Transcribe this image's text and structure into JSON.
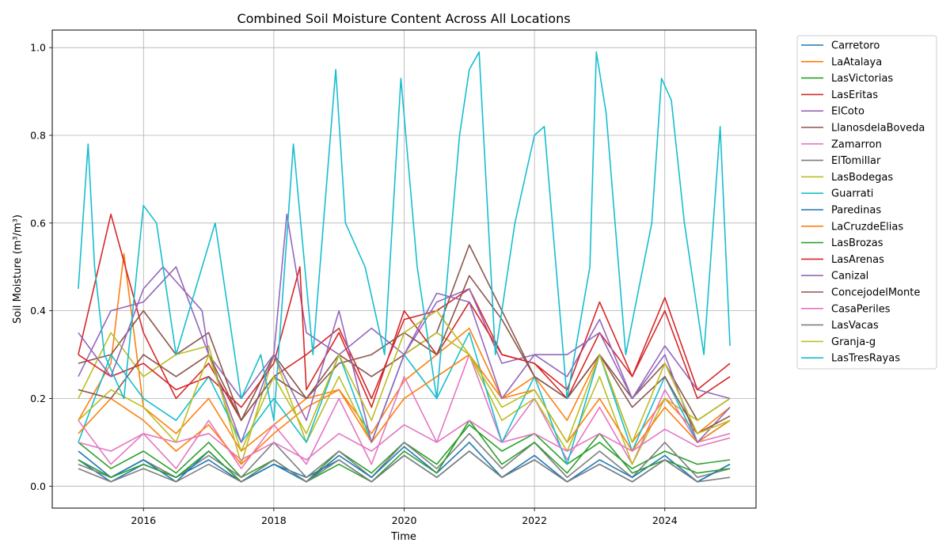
{
  "chart_data": {
    "type": "line",
    "title": "Combined Soil Moisture Content Across All Locations",
    "xlabel": "Time",
    "ylabel": "Soil Moisture (m³/m³)",
    "xlim": [
      2014.6,
      2025.4
    ],
    "ylim": [
      -0.05,
      1.04
    ],
    "x_ticks": [
      {
        "value": 2016,
        "label": "2016"
      },
      {
        "value": 2018,
        "label": "2018"
      },
      {
        "value": 2020,
        "label": "2020"
      },
      {
        "value": 2022,
        "label": "2022"
      },
      {
        "value": 2024,
        "label": "2024"
      }
    ],
    "y_ticks": [
      {
        "value": 0.0,
        "label": "0.0"
      },
      {
        "value": 0.2,
        "label": "0.2"
      },
      {
        "value": 0.4,
        "label": "0.4"
      },
      {
        "value": 0.6,
        "label": "0.6"
      },
      {
        "value": 0.8,
        "label": "0.8"
      },
      {
        "value": 1.0,
        "label": "1.0"
      }
    ],
    "grid": true,
    "legend_position": "outside-top-right",
    "series": [
      {
        "name": "Carretoro",
        "color": "#1f77b4",
        "x": [
          2015.0,
          2015.5,
          2016.0,
          2016.5,
          2017.0,
          2017.5,
          2018.0,
          2018.5,
          2019.0,
          2019.5,
          2020.0,
          2020.5,
          2021.0,
          2021.5,
          2022.0,
          2022.5,
          2023.0,
          2023.5,
          2024.0,
          2024.5,
          2025.0
        ],
        "values": [
          0.06,
          0.01,
          0.05,
          0.02,
          0.06,
          0.01,
          0.05,
          0.02,
          0.06,
          0.01,
          0.07,
          0.02,
          0.08,
          0.02,
          0.06,
          0.01,
          0.05,
          0.01,
          0.06,
          0.01,
          0.05
        ]
      },
      {
        "name": "LaAtalaya",
        "color": "#ff7f0e",
        "x": [
          2015.0,
          2015.5,
          2015.7,
          2016.0,
          2016.5,
          2017.0,
          2017.5,
          2018.0,
          2018.5,
          2019.0,
          2019.5,
          2020.0,
          2020.5,
          2021.0,
          2021.5,
          2022.0,
          2022.5,
          2023.0,
          2023.5,
          2024.0,
          2024.5,
          2025.0
        ],
        "values": [
          0.15,
          0.28,
          0.53,
          0.18,
          0.12,
          0.2,
          0.08,
          0.14,
          0.2,
          0.22,
          0.12,
          0.24,
          0.3,
          0.36,
          0.2,
          0.25,
          0.15,
          0.3,
          0.1,
          0.2,
          0.12,
          0.18
        ]
      },
      {
        "name": "LasVictorias",
        "color": "#2ca02c",
        "x": [
          2015.0,
          2015.5,
          2016.0,
          2016.5,
          2017.0,
          2017.5,
          2018.0,
          2018.5,
          2019.0,
          2019.5,
          2020.0,
          2020.5,
          2021.0,
          2021.5,
          2022.0,
          2022.5,
          2023.0,
          2023.5,
          2024.0,
          2024.5,
          2025.0
        ],
        "values": [
          0.1,
          0.04,
          0.08,
          0.03,
          0.1,
          0.02,
          0.06,
          0.01,
          0.08,
          0.03,
          0.1,
          0.05,
          0.14,
          0.08,
          0.12,
          0.05,
          0.1,
          0.04,
          0.08,
          0.05,
          0.06
        ]
      },
      {
        "name": "LasEritas",
        "color": "#d62728",
        "x": [
          2015.0,
          2015.5,
          2016.0,
          2016.5,
          2017.0,
          2017.5,
          2018.0,
          2018.5,
          2019.0,
          2019.5,
          2020.0,
          2020.5,
          2021.0,
          2021.5,
          2022.0,
          2022.5,
          2023.0,
          2023.5,
          2024.0,
          2024.5,
          2025.0
        ],
        "values": [
          0.3,
          0.62,
          0.35,
          0.2,
          0.28,
          0.15,
          0.25,
          0.3,
          0.36,
          0.2,
          0.38,
          0.4,
          0.45,
          0.3,
          0.28,
          0.2,
          0.35,
          0.25,
          0.4,
          0.2,
          0.25
        ]
      },
      {
        "name": "ElCoto",
        "color": "#9467bd",
        "x": [
          2015.0,
          2015.5,
          2016.0,
          2016.5,
          2017.0,
          2017.5,
          2018.0,
          2018.2,
          2018.5,
          2019.0,
          2019.5,
          2020.0,
          2020.5,
          2021.0,
          2021.5,
          2022.0,
          2022.5,
          2023.0,
          2023.5,
          2024.0,
          2024.5,
          2025.0
        ],
        "values": [
          0.25,
          0.4,
          0.42,
          0.5,
          0.3,
          0.2,
          0.3,
          0.62,
          0.35,
          0.3,
          0.36,
          0.3,
          0.42,
          0.45,
          0.28,
          0.3,
          0.25,
          0.38,
          0.2,
          0.32,
          0.22,
          0.2
        ]
      },
      {
        "name": "LlanosdelaBoveda",
        "color": "#8c564b",
        "x": [
          2015.0,
          2015.5,
          2016.0,
          2016.5,
          2017.0,
          2017.5,
          2018.0,
          2018.5,
          2019.0,
          2019.5,
          2020.0,
          2020.5,
          2021.0,
          2021.5,
          2022.0,
          2022.5,
          2023.0,
          2023.5,
          2024.0,
          2024.5,
          2025.0
        ],
        "values": [
          0.28,
          0.3,
          0.4,
          0.3,
          0.35,
          0.15,
          0.3,
          0.2,
          0.3,
          0.25,
          0.3,
          0.35,
          0.55,
          0.4,
          0.25,
          0.2,
          0.3,
          0.2,
          0.28,
          0.15,
          0.2
        ]
      },
      {
        "name": "Zamarron",
        "color": "#e377c2",
        "x": [
          2015.0,
          2015.5,
          2016.0,
          2016.5,
          2017.0,
          2017.5,
          2018.0,
          2018.5,
          2019.0,
          2019.5,
          2020.0,
          2020.5,
          2021.0,
          2021.5,
          2022.0,
          2022.5,
          2023.0,
          2023.5,
          2024.0,
          2024.5,
          2025.0
        ],
        "values": [
          0.15,
          0.05,
          0.12,
          0.04,
          0.15,
          0.04,
          0.14,
          0.05,
          0.2,
          0.05,
          0.25,
          0.1,
          0.3,
          0.1,
          0.2,
          0.06,
          0.18,
          0.05,
          0.22,
          0.1,
          0.12
        ]
      },
      {
        "name": "ElTomillar",
        "color": "#7f7f7f",
        "x": [
          2015.0,
          2015.5,
          2016.0,
          2016.5,
          2017.0,
          2017.5,
          2018.0,
          2018.5,
          2019.0,
          2019.5,
          2020.0,
          2020.5,
          2021.0,
          2021.5,
          2022.0,
          2022.5,
          2023.0,
          2023.5,
          2024.0,
          2024.5,
          2025.0
        ],
        "values": [
          0.05,
          0.02,
          0.06,
          0.02,
          0.07,
          0.02,
          0.1,
          0.02,
          0.08,
          0.02,
          0.1,
          0.04,
          0.12,
          0.04,
          0.1,
          0.02,
          0.08,
          0.02,
          0.1,
          0.02,
          0.04
        ]
      },
      {
        "name": "LasBodegas",
        "color": "#bcbd22",
        "x": [
          2015.0,
          2015.5,
          2016.0,
          2016.5,
          2017.0,
          2017.5,
          2018.0,
          2018.5,
          2019.0,
          2019.5,
          2020.0,
          2020.5,
          2021.0,
          2021.5,
          2022.0,
          2022.5,
          2023.0,
          2023.5,
          2024.0,
          2024.5,
          2025.0
        ],
        "values": [
          0.2,
          0.35,
          0.25,
          0.3,
          0.32,
          0.05,
          0.3,
          0.1,
          0.25,
          0.1,
          0.3,
          0.35,
          0.3,
          0.15,
          0.2,
          0.08,
          0.25,
          0.05,
          0.2,
          0.15,
          0.2
        ]
      },
      {
        "name": "Guarrati",
        "color": "#17becf",
        "x": [
          2015.0,
          2015.5,
          2016.0,
          2016.5,
          2017.0,
          2017.5,
          2018.0,
          2018.5,
          2019.0,
          2019.5,
          2020.0,
          2020.5,
          2021.0,
          2021.5,
          2022.0,
          2022.5,
          2023.0,
          2023.5,
          2024.0,
          2024.5,
          2025.0
        ],
        "values": [
          0.1,
          0.3,
          0.2,
          0.15,
          0.25,
          0.1,
          0.2,
          0.1,
          0.3,
          0.1,
          0.3,
          0.2,
          0.35,
          0.1,
          0.25,
          0.05,
          0.3,
          0.08,
          0.25,
          0.1,
          0.15
        ]
      },
      {
        "name": "Paredinas",
        "color": "#1f77b4",
        "x": [
          2015.0,
          2015.5,
          2016.0,
          2016.5,
          2017.0,
          2017.5,
          2018.0,
          2018.5,
          2019.0,
          2019.5,
          2020.0,
          2020.5,
          2021.0,
          2021.5,
          2022.0,
          2022.5,
          2023.0,
          2023.5,
          2024.0,
          2024.5,
          2025.0
        ],
        "values": [
          0.08,
          0.02,
          0.06,
          0.01,
          0.08,
          0.01,
          0.05,
          0.01,
          0.07,
          0.02,
          0.09,
          0.03,
          0.1,
          0.02,
          0.07,
          0.01,
          0.06,
          0.02,
          0.07,
          0.01,
          0.05
        ]
      },
      {
        "name": "LaCruzdeElias",
        "color": "#ff7f0e",
        "x": [
          2015.0,
          2015.5,
          2016.0,
          2016.5,
          2017.0,
          2017.5,
          2018.0,
          2018.5,
          2019.0,
          2019.5,
          2020.0,
          2020.5,
          2021.0,
          2021.5,
          2022.0,
          2022.5,
          2023.0,
          2023.5,
          2024.0,
          2024.5,
          2025.0
        ],
        "values": [
          0.12,
          0.2,
          0.15,
          0.08,
          0.14,
          0.05,
          0.12,
          0.18,
          0.22,
          0.1,
          0.2,
          0.25,
          0.3,
          0.2,
          0.22,
          0.1,
          0.2,
          0.08,
          0.18,
          0.1,
          0.15
        ]
      },
      {
        "name": "LasBrozas",
        "color": "#2ca02c",
        "x": [
          2015.0,
          2015.5,
          2016.0,
          2016.5,
          2017.0,
          2017.5,
          2018.0,
          2018.5,
          2019.0,
          2019.5,
          2020.0,
          2020.5,
          2021.0,
          2021.5,
          2022.0,
          2022.5,
          2023.0,
          2023.5,
          2024.0,
          2024.5,
          2025.0
        ],
        "values": [
          0.06,
          0.02,
          0.05,
          0.02,
          0.08,
          0.01,
          0.06,
          0.01,
          0.05,
          0.01,
          0.08,
          0.03,
          0.15,
          0.05,
          0.1,
          0.03,
          0.12,
          0.03,
          0.06,
          0.03,
          0.04
        ]
      },
      {
        "name": "LasArenas",
        "color": "#d62728",
        "x": [
          2015.0,
          2015.5,
          2016.0,
          2016.5,
          2017.0,
          2017.5,
          2018.0,
          2018.4,
          2018.5,
          2019.0,
          2019.5,
          2020.0,
          2020.5,
          2021.0,
          2021.5,
          2022.0,
          2022.5,
          2023.0,
          2023.5,
          2024.0,
          2024.5,
          2025.0
        ],
        "values": [
          0.3,
          0.25,
          0.28,
          0.22,
          0.25,
          0.18,
          0.28,
          0.5,
          0.22,
          0.35,
          0.18,
          0.4,
          0.3,
          0.42,
          0.3,
          0.28,
          0.22,
          0.42,
          0.25,
          0.43,
          0.22,
          0.28
        ]
      },
      {
        "name": "Canizal",
        "color": "#9467bd",
        "x": [
          2015.0,
          2015.5,
          2016.0,
          2016.3,
          2016.6,
          2016.9,
          2017.0,
          2017.5,
          2018.0,
          2018.5,
          2019.0,
          2019.5,
          2020.0,
          2020.5,
          2021.0,
          2021.5,
          2022.0,
          2022.5,
          2023.0,
          2023.5,
          2024.0,
          2024.5,
          2025.0
        ],
        "values": [
          0.35,
          0.25,
          0.45,
          0.5,
          0.45,
          0.4,
          0.3,
          0.1,
          0.3,
          0.15,
          0.4,
          0.1,
          0.3,
          0.44,
          0.42,
          0.2,
          0.3,
          0.3,
          0.35,
          0.2,
          0.3,
          0.1,
          0.18
        ]
      },
      {
        "name": "ConcejodelMonte",
        "color": "#8c564b",
        "x": [
          2015.0,
          2015.5,
          2016.0,
          2016.5,
          2017.0,
          2017.5,
          2018.0,
          2018.5,
          2019.0,
          2019.5,
          2020.0,
          2020.5,
          2021.0,
          2021.5,
          2022.0,
          2022.5,
          2023.0,
          2023.5,
          2024.0,
          2024.5,
          2025.0
        ],
        "values": [
          0.22,
          0.2,
          0.3,
          0.25,
          0.3,
          0.15,
          0.25,
          0.2,
          0.28,
          0.3,
          0.35,
          0.3,
          0.48,
          0.38,
          0.25,
          0.2,
          0.3,
          0.18,
          0.25,
          0.12,
          0.16
        ]
      },
      {
        "name": "CasaPeriles",
        "color": "#e377c2",
        "x": [
          2015.0,
          2015.5,
          2016.0,
          2016.5,
          2017.0,
          2017.5,
          2018.0,
          2018.5,
          2019.0,
          2019.5,
          2020.0,
          2020.5,
          2021.0,
          2021.5,
          2022.0,
          2022.5,
          2023.0,
          2023.5,
          2024.0,
          2024.5,
          2025.0
        ],
        "values": [
          0.1,
          0.08,
          0.12,
          0.1,
          0.12,
          0.06,
          0.1,
          0.06,
          0.12,
          0.08,
          0.14,
          0.1,
          0.15,
          0.1,
          0.12,
          0.08,
          0.12,
          0.08,
          0.13,
          0.09,
          0.11
        ]
      },
      {
        "name": "LasVacas",
        "color": "#7f7f7f",
        "x": [
          2015.0,
          2015.5,
          2016.0,
          2016.5,
          2017.0,
          2017.5,
          2018.0,
          2018.5,
          2019.0,
          2019.5,
          2020.0,
          2020.5,
          2021.0,
          2021.5,
          2022.0,
          2022.5,
          2023.0,
          2023.5,
          2024.0,
          2024.5,
          2025.0
        ],
        "values": [
          0.04,
          0.01,
          0.04,
          0.01,
          0.05,
          0.01,
          0.06,
          0.01,
          0.06,
          0.01,
          0.07,
          0.02,
          0.08,
          0.02,
          0.06,
          0.01,
          0.05,
          0.01,
          0.06,
          0.01,
          0.02
        ]
      },
      {
        "name": "Granja-g",
        "color": "#bcbd22",
        "x": [
          2015.0,
          2015.5,
          2016.0,
          2016.5,
          2017.0,
          2017.5,
          2018.0,
          2018.5,
          2019.0,
          2019.5,
          2020.0,
          2020.5,
          2021.0,
          2021.5,
          2022.0,
          2022.5,
          2023.0,
          2023.5,
          2024.0,
          2024.5,
          2025.0
        ],
        "values": [
          0.15,
          0.22,
          0.18,
          0.1,
          0.3,
          0.08,
          0.25,
          0.12,
          0.3,
          0.15,
          0.35,
          0.4,
          0.3,
          0.18,
          0.22,
          0.1,
          0.3,
          0.1,
          0.28,
          0.12,
          0.15
        ]
      },
      {
        "name": "LasTresRayas",
        "color": "#17becf",
        "x": [
          2015.0,
          2015.15,
          2015.25,
          2015.4,
          2015.7,
          2016.0,
          2016.2,
          2016.5,
          2016.8,
          2017.1,
          2017.5,
          2017.8,
          2018.0,
          2018.3,
          2018.6,
          2018.95,
          2019.1,
          2019.4,
          2019.7,
          2019.95,
          2020.2,
          2020.5,
          2020.85,
          2021.0,
          2021.15,
          2021.4,
          2021.7,
          2022.0,
          2022.15,
          2022.5,
          2022.85,
          2022.95,
          2023.1,
          2023.4,
          2023.8,
          2023.95,
          2024.1,
          2024.3,
          2024.6,
          2024.85,
          2025.0
        ],
        "values": [
          0.45,
          0.78,
          0.5,
          0.3,
          0.2,
          0.64,
          0.6,
          0.3,
          0.45,
          0.6,
          0.2,
          0.3,
          0.15,
          0.78,
          0.3,
          0.95,
          0.6,
          0.5,
          0.3,
          0.93,
          0.5,
          0.2,
          0.8,
          0.95,
          0.99,
          0.3,
          0.6,
          0.8,
          0.82,
          0.2,
          0.5,
          0.99,
          0.85,
          0.3,
          0.6,
          0.93,
          0.88,
          0.6,
          0.3,
          0.82,
          0.32
        ]
      }
    ]
  }
}
